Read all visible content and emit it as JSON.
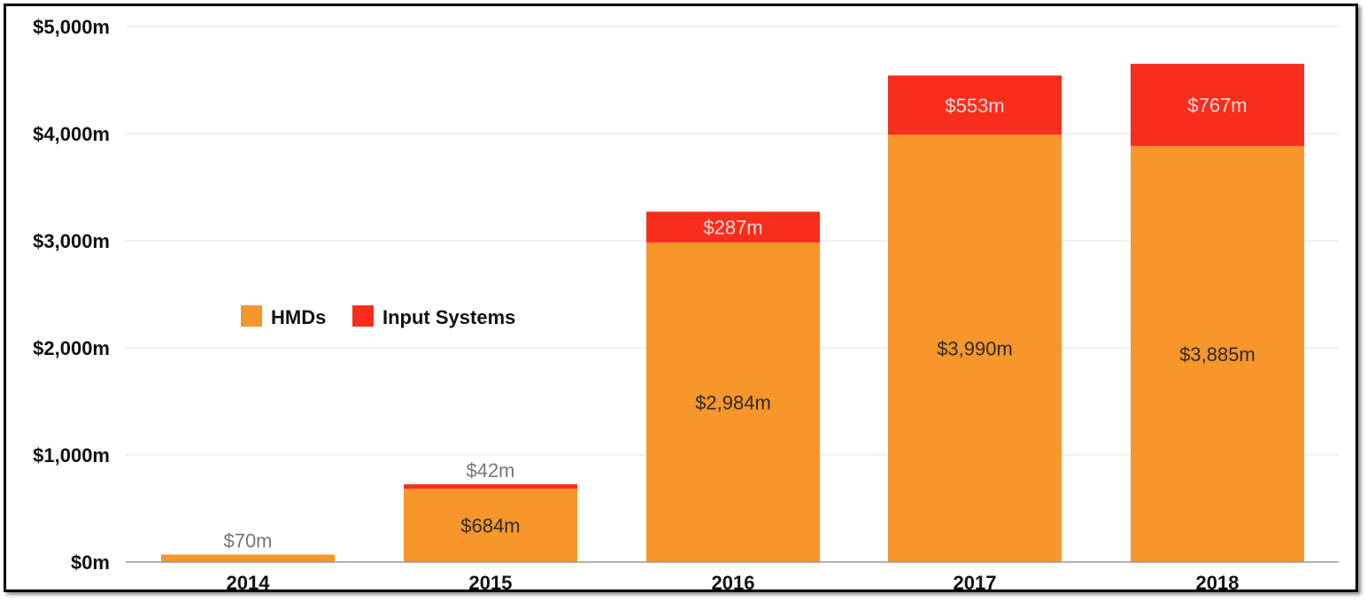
{
  "chart_data": {
    "type": "bar",
    "stacked": true,
    "title": "",
    "xlabel": "",
    "ylabel": "",
    "categories": [
      "2014",
      "2015",
      "2016",
      "2017",
      "2018"
    ],
    "ylim": [
      0,
      5000
    ],
    "yticks": [
      0,
      1000,
      2000,
      3000,
      4000,
      5000
    ],
    "ytick_labels": [
      "$0m",
      "$1,000m",
      "$2,000m",
      "$3,000m",
      "$4,000m",
      "$5,000m"
    ],
    "series": [
      {
        "name": "HMDs",
        "color": "#f7962a",
        "values": [
          70,
          684,
          2984,
          3990,
          3885
        ],
        "labels": [
          "$70m",
          "$684m",
          "$2,984m",
          "$3,990m",
          "$3,885m"
        ]
      },
      {
        "name": "Input Systems",
        "color": "#f92d1c",
        "values": [
          0,
          42,
          287,
          553,
          767
        ],
        "labels": [
          "",
          "$42m",
          "$287m",
          "$553m",
          "$767m"
        ]
      }
    ],
    "legend": {
      "position": "left-middle",
      "entries": [
        "HMDs",
        "Input Systems"
      ]
    },
    "grid": true
  }
}
